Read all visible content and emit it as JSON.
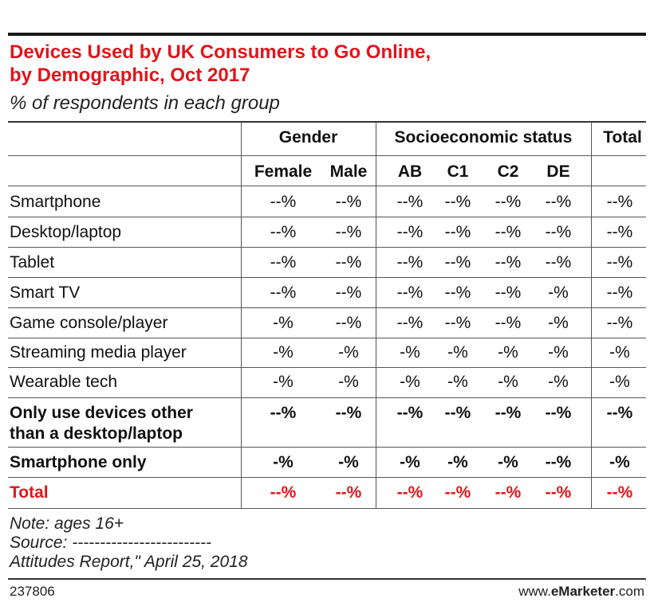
{
  "chart_data": {
    "type": "table",
    "title_line1": "Devices Used by UK Consumers to Go Online,",
    "title_line2": "by Demographic, Oct 2017",
    "subtitle": "% of respondents in each group",
    "group_headers": [
      "Gender",
      "Socioeconomic status",
      "Total"
    ],
    "columns": [
      "Female",
      "Male",
      "AB",
      "C1",
      "C2",
      "DE"
    ],
    "rows": [
      {
        "label": "Smartphone",
        "values": [
          "--%",
          "--%",
          "--%",
          "--%",
          "--%",
          "--%",
          "--%"
        ]
      },
      {
        "label": "Desktop/laptop",
        "values": [
          "--%",
          "--%",
          "--%",
          "--%",
          "--%",
          "--%",
          "--%"
        ]
      },
      {
        "label": "Tablet",
        "values": [
          "--%",
          "--%",
          "--%",
          "--%",
          "--%",
          "--%",
          "--%"
        ]
      },
      {
        "label": "Smart TV",
        "values": [
          "--%",
          "--%",
          "--%",
          "--%",
          "--%",
          "-%",
          "--%"
        ]
      },
      {
        "label": "Game console/player",
        "values": [
          "-%",
          "--%",
          "--%",
          "--%",
          "--%",
          "-%",
          "--%"
        ]
      },
      {
        "label": "Streaming media player",
        "values": [
          "-%",
          "-%",
          "-%",
          "-%",
          "-%",
          "-%",
          "-%"
        ]
      },
      {
        "label": "Wearable tech",
        "values": [
          "-%",
          "-%",
          "-%",
          "-%",
          "-%",
          "-%",
          "-%"
        ]
      },
      {
        "label_line1": "Only use devices other",
        "label_line2": "than a desktop/laptop",
        "values": [
          "--%",
          "--%",
          "--%",
          "--%",
          "--%",
          "--%",
          "--%"
        ]
      },
      {
        "label": "Smartphone only",
        "values": [
          "-%",
          "-%",
          "-%",
          "-%",
          "-%",
          "--%",
          "-%"
        ]
      },
      {
        "label": "Total",
        "values": [
          "--%",
          "--%",
          "--%",
          "--%",
          "--%",
          "--%",
          "--%"
        ]
      }
    ],
    "note": "Note: ages 16+",
    "source": "Source: -------------------------",
    "source_line2": "Attitudes Report,\" April 25, 2018",
    "chart_id": "237806",
    "site_prefix": "www.",
    "site_brand": "eMarketer",
    "site_suffix": ".com",
    "colors": {
      "accent": "#e0151b",
      "text": "#111111",
      "rule": "#555555"
    }
  }
}
